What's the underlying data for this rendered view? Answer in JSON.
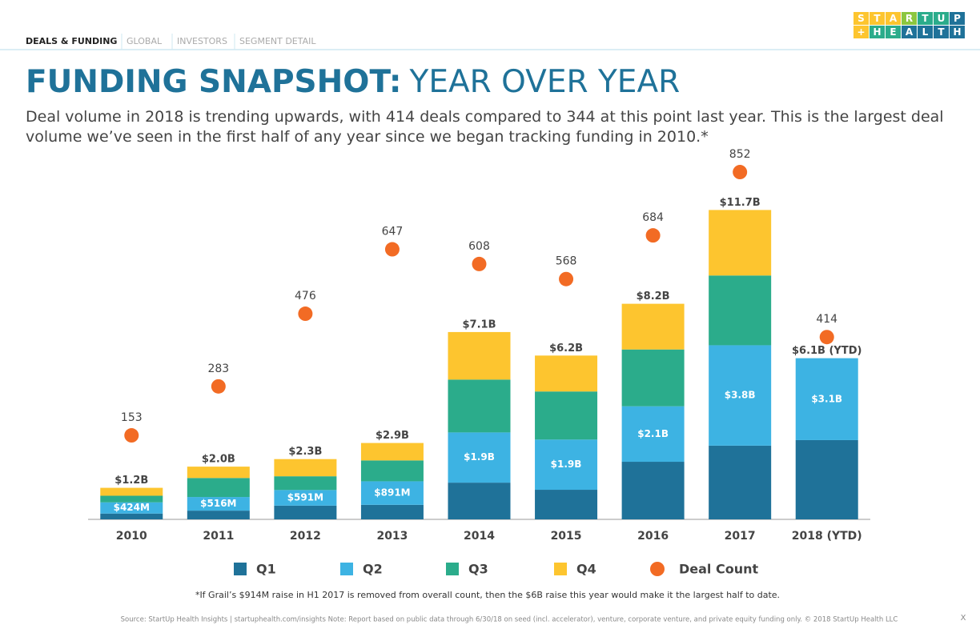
{
  "header": {
    "tabs": [
      "DEALS & FUNDING",
      "GLOBAL",
      "INVESTORS",
      "SEGMENT DETAIL"
    ],
    "logo": [
      [
        "S",
        "T",
        "A",
        "R",
        "T",
        "U",
        "P"
      ],
      [
        "+",
        "H",
        "E",
        "A",
        "L",
        "T",
        "H"
      ]
    ]
  },
  "chart_data": {
    "type": "bar",
    "title": [
      "FUNDING SNAPSHOT:",
      "YEAR OVER YEAR"
    ],
    "description": "Deal volume in 2018 is trending upwards, with 414 deals compared to 344 at this point last year. This is the largest deal volume we’ve seen in the first half of any year since we began tracking funding in 2010.*",
    "categories": [
      "2010",
      "2011",
      "2012",
      "2013",
      "2014",
      "2015",
      "2016",
      "2017",
      "2018 (YTD)"
    ],
    "ylim": [
      0,
      13.6
    ],
    "y2lim": [
      -70,
      884
    ],
    "series": [
      {
        "name": "Q1",
        "color": "#1f7299",
        "values": [
          0.22,
          0.33,
          0.52,
          0.55,
          1.39,
          1.12,
          2.18,
          2.79,
          3.0
        ]
      },
      {
        "name": "Q2",
        "color": "#3db3e3",
        "values": [
          0.424,
          0.516,
          0.591,
          0.891,
          1.9,
          1.9,
          2.1,
          3.8,
          3.1
        ],
        "value_labels": [
          "$424M",
          "$516M",
          "$591M",
          "$891M",
          "$1.9B",
          "$1.9B",
          "$2.1B",
          "$3.8B",
          "$3.1B"
        ]
      },
      {
        "name": "Q3",
        "color": "#2bac8b",
        "values": [
          0.25,
          0.72,
          0.52,
          0.79,
          2.0,
          1.82,
          2.15,
          2.64,
          null
        ]
      },
      {
        "name": "Q4",
        "color": "#fdc52f",
        "values": [
          0.3,
          0.43,
          0.65,
          0.66,
          1.8,
          1.36,
          1.73,
          2.48,
          null
        ]
      },
      {
        "name": "Deal Count",
        "type": "scatter",
        "axis": "y2",
        "color": "#f26b24",
        "values": [
          153,
          283,
          476,
          647,
          608,
          568,
          684,
          852,
          414
        ]
      }
    ],
    "total_labels": [
      "$1.2B",
      "$2.0B",
      "$2.3B",
      "$2.9B",
      "$7.1B",
      "$6.2B",
      "$8.2B",
      "$11.7B",
      "$6.1B (YTD)"
    ]
  },
  "footnote": "*If Grail’s $914M raise in H1 2017 is removed from overall count, then the $6B raise this year would make it the largest half to date.",
  "source": "Source: StartUp Health Insights | startuphealth.com/insights   Note: Report based on public data through 6/30/18 on seed (incl. accelerator), venture, corporate venture, and private equity funding only. © 2018 StartUp Health LLC",
  "close": "X"
}
